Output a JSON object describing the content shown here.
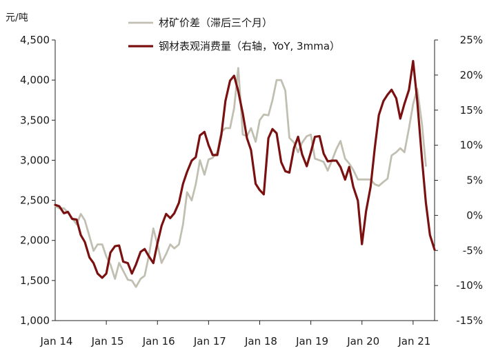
{
  "chart_data": {
    "type": "line",
    "y_unit_left": "元/吨",
    "yticks_left": [
      "4,500",
      "4,000",
      "3,500",
      "3,000",
      "2,500",
      "2,000",
      "1,500",
      "1,000"
    ],
    "ylim_left": [
      1000,
      4500
    ],
    "yticks_right": [
      "25%",
      "20%",
      "15%",
      "10%",
      "5%",
      "0%",
      "-5%",
      "-10%",
      "-15%"
    ],
    "ylim_right": [
      -15,
      25
    ],
    "xticks": [
      "Jan 14",
      "Jan 15",
      "Jan 16",
      "Jan 17",
      "Jan 18",
      "Jan 19",
      "Jan 20",
      "Jan 21"
    ],
    "legend_position": "top",
    "series": [
      {
        "name": "材矿价差（滞后三个月）",
        "axis": "left",
        "color": "#c0bfb1",
        "x": [
          2014.0,
          2014.08,
          2014.17,
          2014.25,
          2014.33,
          2014.42,
          2014.5,
          2014.58,
          2014.67,
          2014.75,
          2014.83,
          2014.92,
          2015.0,
          2015.08,
          2015.17,
          2015.25,
          2015.33,
          2015.42,
          2015.5,
          2015.58,
          2015.67,
          2015.75,
          2015.83,
          2015.92,
          2016.0,
          2016.08,
          2016.17,
          2016.25,
          2016.33,
          2016.42,
          2016.5,
          2016.58,
          2016.67,
          2016.75,
          2016.83,
          2016.92,
          2017.0,
          2017.08,
          2017.17,
          2017.25,
          2017.33,
          2017.42,
          2017.5,
          2017.58,
          2017.67,
          2017.75,
          2017.83,
          2017.92,
          2018.0,
          2018.08,
          2018.17,
          2018.25,
          2018.33,
          2018.42,
          2018.5,
          2018.58,
          2018.67,
          2018.75,
          2018.83,
          2018.92,
          2019.0,
          2019.08,
          2019.17,
          2019.25,
          2019.33,
          2019.42,
          2019.5,
          2019.58,
          2019.67,
          2019.75,
          2019.83,
          2019.92,
          2020.0,
          2020.08,
          2020.17,
          2020.25,
          2020.33,
          2020.42,
          2020.5,
          2020.58,
          2020.67,
          2020.75,
          2020.83,
          2020.92,
          2021.0,
          2021.08,
          2021.17,
          2021.25
        ],
        "values": [
          2430,
          2400,
          2400,
          2350,
          2280,
          2200,
          2330,
          2250,
          2050,
          1870,
          1950,
          1950,
          1800,
          1700,
          1520,
          1720,
          1620,
          1510,
          1500,
          1420,
          1520,
          1560,
          1800,
          2150,
          1950,
          1720,
          1830,
          1950,
          1900,
          1950,
          2200,
          2600,
          2500,
          2700,
          3000,
          2820,
          3010,
          3030,
          3100,
          3350,
          3400,
          3400,
          3650,
          4150,
          3320,
          3300,
          3400,
          3230,
          3500,
          3570,
          3560,
          3750,
          4000,
          4000,
          3870,
          3280,
          3220,
          3100,
          3220,
          3300,
          3320,
          3020,
          3000,
          2980,
          2870,
          3010,
          3140,
          3240,
          3020,
          2960,
          2880,
          2760,
          2760,
          2760,
          2760,
          2700,
          2680,
          2730,
          2770,
          3060,
          3100,
          3150,
          3100,
          3400,
          3700,
          3890,
          3470,
          2930
        ]
      },
      {
        "name": "钢材表观消费量（右轴，YoY, 3mma）",
        "axis": "right",
        "color": "#7a1010",
        "x": [
          2014.0,
          2014.08,
          2014.17,
          2014.25,
          2014.33,
          2014.42,
          2014.5,
          2014.58,
          2014.67,
          2014.75,
          2014.83,
          2014.92,
          2015.0,
          2015.08,
          2015.17,
          2015.25,
          2015.33,
          2015.42,
          2015.5,
          2015.58,
          2015.67,
          2015.75,
          2015.83,
          2015.92,
          2016.0,
          2016.08,
          2016.17,
          2016.25,
          2016.33,
          2016.42,
          2016.5,
          2016.58,
          2016.67,
          2016.75,
          2016.83,
          2016.92,
          2017.0,
          2017.08,
          2017.17,
          2017.25,
          2017.33,
          2017.42,
          2017.5,
          2017.58,
          2017.67,
          2017.75,
          2017.83,
          2017.92,
          2018.0,
          2018.08,
          2018.17,
          2018.25,
          2018.33,
          2018.42,
          2018.5,
          2018.58,
          2018.67,
          2018.75,
          2018.83,
          2018.92,
          2019.0,
          2019.08,
          2019.17,
          2019.25,
          2019.33,
          2019.42,
          2019.5,
          2019.58,
          2019.67,
          2019.75,
          2019.83,
          2019.92,
          2020.0,
          2020.08,
          2020.17,
          2020.25,
          2020.33,
          2020.42,
          2020.5,
          2020.58,
          2020.67,
          2020.75,
          2020.83,
          2020.92,
          2021.0,
          2021.08,
          2021.17,
          2021.25,
          2021.33,
          2021.42
        ],
        "values": [
          1.5,
          1.3,
          0.3,
          0.5,
          -0.5,
          -0.6,
          -2.8,
          -3.8,
          -6.0,
          -6.8,
          -8.3,
          -8.9,
          -8.3,
          -5.3,
          -4.4,
          -4.3,
          -6.6,
          -6.8,
          -8.3,
          -7.0,
          -5.2,
          -4.8,
          -5.8,
          -6.8,
          -4.0,
          -1.5,
          0.2,
          -0.4,
          0.3,
          1.8,
          4.5,
          6.2,
          7.8,
          8.3,
          11.4,
          11.9,
          10.0,
          8.6,
          8.6,
          11.5,
          16.3,
          19.2,
          19.9,
          17.7,
          14.5,
          11.0,
          9.3,
          4.5,
          3.6,
          3.0,
          11.0,
          12.3,
          11.7,
          7.6,
          6.3,
          6.1,
          9.6,
          11.2,
          8.7,
          7.0,
          9.0,
          11.2,
          11.3,
          8.8,
          7.7,
          7.8,
          7.8,
          6.9,
          5.1,
          6.9,
          4.1,
          2.1,
          -4.1,
          0.6,
          4.1,
          9.6,
          14.3,
          16.3,
          17.2,
          17.9,
          16.7,
          13.8,
          15.9,
          17.9,
          22.0,
          16.4,
          8.3,
          1.8,
          -2.8,
          -4.9
        ]
      }
    ]
  }
}
